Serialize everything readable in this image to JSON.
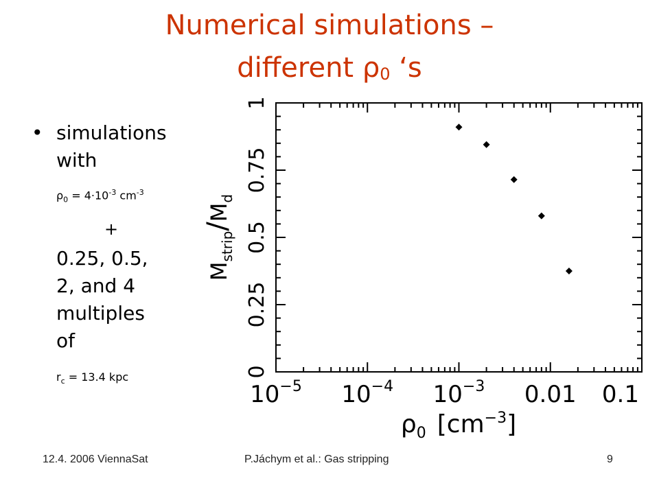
{
  "slide": {
    "title_line1": "Numerical simulations –",
    "title_line2_text": "different ρ",
    "title_line2_sub": "0",
    "title_line2_end": " ‘s",
    "bullet": {
      "marker": "•",
      "line1": "simulations",
      "line2": "with",
      "rho_symbol": "ρ",
      "rho_sub": "0",
      "rho_eq": " = 4·10",
      "rho_exp": "-3",
      "rho_unit": " cm",
      "rho_unit_exp": "-3",
      "plus": "+",
      "mult_line1": "0.25, 0.5,",
      "mult_line2": "2, and 4",
      "mult_line3": "multiples",
      "mult_line4": "of",
      "rc_symbol": "r",
      "rc_sub": "c",
      "rc_value": " = 13.4 kpc"
    },
    "footer": {
      "left": "12.4. 2006 ViennaSat",
      "center": "P.Jáchym et al.: Gas stripping",
      "right": "9"
    }
  },
  "chart_data": {
    "type": "scatter",
    "x_scale": "log",
    "xlim": [
      1e-05,
      0.1
    ],
    "ylim": [
      0,
      1
    ],
    "x_ticks": [
      1e-05,
      0.0001,
      0.001,
      0.01,
      0.1
    ],
    "x_tick_labels": [
      {
        "base": "10",
        "exp": "−5"
      },
      {
        "base": "10",
        "exp": "−4"
      },
      {
        "base": "10",
        "exp": "−3"
      },
      {
        "base": "0.01",
        "exp": ""
      },
      {
        "base": "0.1",
        "exp": ""
      }
    ],
    "y_ticks": [
      0,
      0.25,
      0.5,
      0.75,
      1
    ],
    "y_tick_labels": [
      "0",
      "0.25",
      "0.5",
      "0.75",
      "1"
    ],
    "xlabel": {
      "main": "ρ",
      "sub": "0",
      "unit_open": "[cm",
      "unit_exp": "−3",
      "unit_close": "]"
    },
    "ylabel": {
      "num": "M",
      "num_sub": "strip",
      "slash": "/",
      "den": "M",
      "den_sub": "d"
    },
    "points": [
      {
        "x": 0.001,
        "y": 0.91
      },
      {
        "x": 0.002,
        "y": 0.845
      },
      {
        "x": 0.004,
        "y": 0.715
      },
      {
        "x": 0.008,
        "y": 0.58
      },
      {
        "x": 0.016,
        "y": 0.375
      }
    ],
    "marker_color": "#000000",
    "grid": false
  }
}
